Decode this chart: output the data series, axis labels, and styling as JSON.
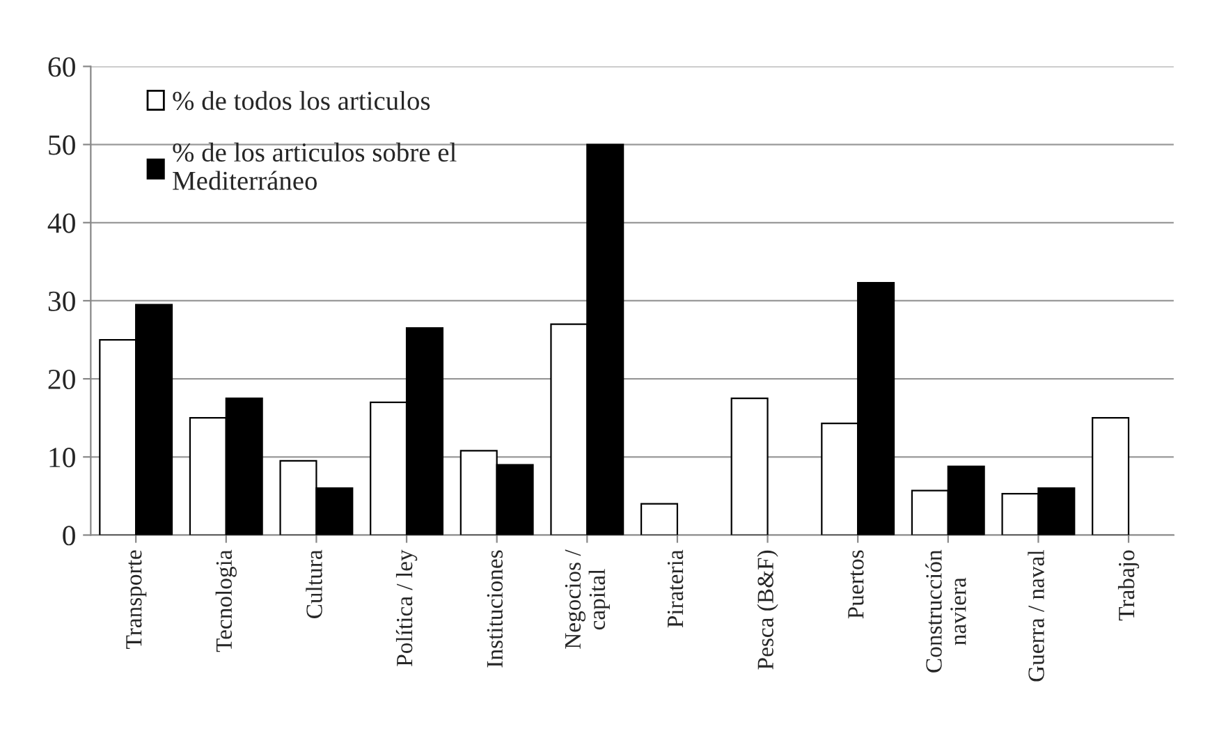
{
  "chart_data": {
    "type": "bar",
    "categories": [
      "Transporte",
      "Tecnologia",
      "Cultura",
      "Política / ley",
      "Instituciones",
      "Negocios /\ncapital",
      "Pirateria",
      "Pesca (B&F)",
      "Puertos",
      "Construcción\nnaviera",
      "Guerra / naval",
      "Trabajo"
    ],
    "series": [
      {
        "name": "% de todos los articulos",
        "color": "#ffffff",
        "values": [
          25,
          15,
          9.5,
          17,
          10.8,
          27,
          4,
          17.5,
          14.3,
          5.7,
          5.3,
          15
        ]
      },
      {
        "name": "% de los articulos sobre el\nMediterráneo",
        "color": "#000000",
        "values": [
          29.5,
          17.5,
          6,
          26.5,
          9,
          50,
          null,
          null,
          32.3,
          8.8,
          6,
          null
        ]
      }
    ],
    "ylim": [
      0,
      60
    ],
    "yticks": [
      0,
      10,
      20,
      30,
      40,
      50,
      60
    ],
    "grid": "y",
    "legend": "top left"
  }
}
